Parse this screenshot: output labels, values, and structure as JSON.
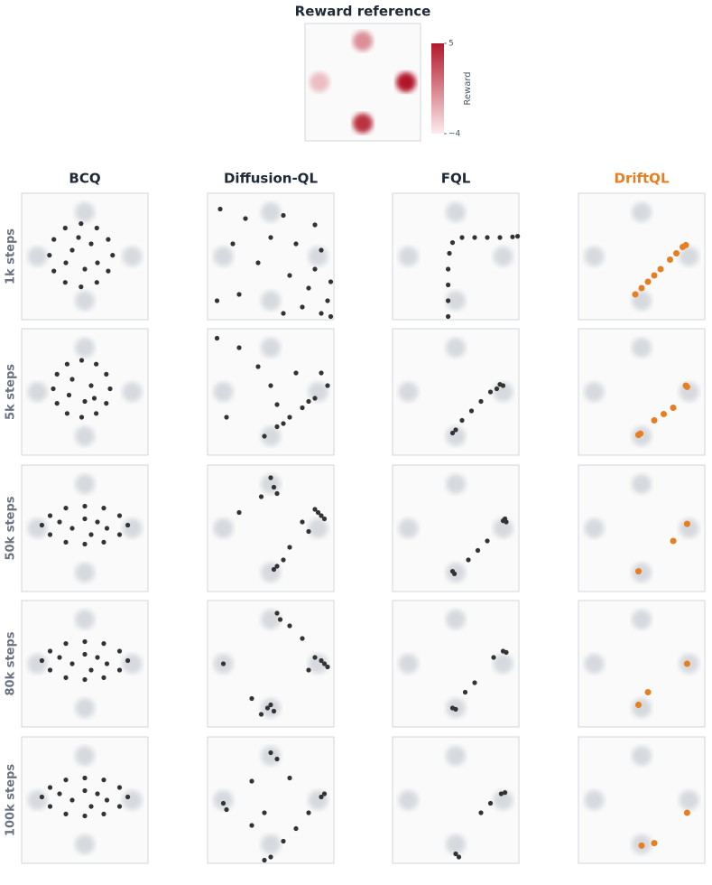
{
  "reference": {
    "title": "Reward reference",
    "colorbar_label": "Reward",
    "clim": [
      -4,
      5
    ],
    "cticks": [
      5,
      {
        "value": -4,
        "label": "−4"
      }
    ],
    "xlim": [
      -1,
      1
    ],
    "ylim": [
      -1,
      1
    ],
    "modes": {
      "x": [
        0,
        -0.75,
        0.75,
        0
      ],
      "y": [
        0.7,
        0,
        0,
        -0.7
      ],
      "reward": [
        0,
        -2,
        5,
        4
      ]
    }
  },
  "chart_data": {
    "type": "scatter",
    "xlim": [
      -1,
      1
    ],
    "ylim": [
      -1,
      1
    ],
    "columns": [
      {
        "name": "BCQ",
        "color": "#333333"
      },
      {
        "name": "Diffusion-QL",
        "color": "#333333"
      },
      {
        "name": "FQL",
        "color": "#333333"
      },
      {
        "name": "DriftQL",
        "color": "#e67e22"
      }
    ],
    "rows": [
      "1k steps",
      "5k steps",
      "50k steps",
      "80k steps",
      "100k steps"
    ],
    "panels": [
      [
        {
          "x": [
            0.44,
            0.37,
            0.19,
            -0.06,
            -0.31,
            -0.49,
            -0.56,
            -0.49,
            -0.31,
            -0.06,
            0.19,
            0.37,
            0.1,
            -0.2,
            0.0,
            -0.3,
            0.2,
            -0.1
          ],
          "y": [
            0.02,
            0.27,
            0.45,
            0.52,
            0.45,
            0.27,
            0.02,
            -0.23,
            -0.41,
            -0.48,
            -0.41,
            -0.23,
            0.2,
            0.1,
            -0.2,
            -0.1,
            -0.1,
            0.3
          ]
        },
        {
          "x": [
            -0.8,
            -0.4,
            0.2,
            0.7,
            -0.6,
            0,
            0.4,
            0.8,
            -0.2,
            0.3,
            0.6,
            0.9,
            0.5,
            0.8,
            0.95,
            0.2,
            -0.5,
            0.7,
            0.95,
            -0.85
          ],
          "y": [
            0.75,
            0.6,
            0.65,
            0.5,
            0.2,
            0.3,
            0.2,
            0.1,
            -0.1,
            -0.3,
            -0.5,
            -0.7,
            -0.8,
            -0.9,
            -0.95,
            -0.9,
            -0.6,
            -0.2,
            -0.4,
            -0.7
          ]
        },
        {
          "x": [
            -0.12,
            -0.12,
            -0.12,
            -0.12,
            -0.1,
            -0.05,
            0.1,
            0.3,
            0.5,
            0.7,
            0.9,
            0.98
          ],
          "y": [
            -0.95,
            -0.7,
            -0.45,
            -0.2,
            0.05,
            0.22,
            0.3,
            0.3,
            0.3,
            0.3,
            0.31,
            0.32
          ]
        },
        {
          "x": [
            -0.1,
            0,
            0.1,
            0.2,
            0.3,
            0.45,
            0.55,
            0.65,
            0.7
          ],
          "y": [
            -0.6,
            -0.5,
            -0.4,
            -0.3,
            -0.2,
            -0.05,
            0.05,
            0.15,
            0.18
          ]
        }
      ],
      [
        {
          "x": [
            0.4,
            0.34,
            0.18,
            -0.05,
            -0.28,
            -0.44,
            -0.5,
            -0.44,
            -0.28,
            -0.05,
            0.18,
            0.34,
            0.1,
            -0.2,
            0,
            -0.25,
            0.15
          ],
          "y": [
            0.05,
            0.28,
            0.44,
            0.5,
            0.44,
            0.28,
            0.05,
            -0.18,
            -0.34,
            -0.4,
            -0.34,
            -0.18,
            0.1,
            0.2,
            -0.15,
            -0.05,
            -0.1
          ]
        },
        {
          "x": [
            -0.1,
            0.1,
            0.3,
            0.5,
            0.7,
            0.9,
            0.2,
            0.6,
            -0.5,
            -0.2,
            0.4,
            -0.7,
            0,
            -0.85,
            0.1,
            0.8
          ],
          "y": [
            -0.7,
            -0.55,
            -0.4,
            -0.25,
            -0.1,
            0.1,
            -0.5,
            -0.15,
            0.7,
            0.4,
            0.3,
            -0.4,
            0.1,
            0.85,
            -0.2,
            0.3
          ]
        },
        {
          "x": [
            -0.05,
            0,
            0.1,
            0.25,
            0.4,
            0.55,
            0.7,
            0.75,
            0.65
          ],
          "y": [
            -0.65,
            -0.6,
            -0.45,
            -0.3,
            -0.15,
            0,
            0.12,
            0.1,
            0.05
          ]
        },
        {
          "x": [
            0.7,
            0.72,
            0.5,
            0.35,
            0.2,
            -0.05,
            -0.02
          ],
          "y": [
            0.1,
            0.08,
            -0.25,
            -0.35,
            -0.45,
            -0.68,
            -0.66
          ]
        }
      ],
      [
        {
          "x": [
            0.68,
            0.55,
            0.3,
            0,
            -0.3,
            -0.55,
            -0.68,
            -0.55,
            -0.3,
            0,
            0.3,
            0.55,
            0.2,
            -0.2,
            0,
            -0.4,
            0.35,
            0.1
          ],
          "y": [
            0.05,
            0.2,
            0.32,
            0.35,
            0.32,
            0.2,
            0.05,
            -0.1,
            -0.22,
            -0.25,
            -0.22,
            -0.1,
            0.1,
            0,
            0.15,
            0.1,
            0,
            -0.1
          ]
        },
        {
          "x": [
            0,
            0.05,
            0.1,
            0.8,
            0.75,
            0.85,
            0.7,
            0.1,
            0.05,
            0.2,
            -0.5,
            0.5,
            0.3,
            -0.15,
            0.6
          ],
          "y": [
            0.8,
            0.65,
            0.55,
            0.2,
            0.25,
            0.15,
            0.3,
            -0.6,
            -0.65,
            -0.5,
            0.25,
            0.1,
            -0.3,
            0.5,
            -0.05
          ]
        },
        {
          "x": [
            0.75,
            0.8,
            0.78,
            0.5,
            0.35,
            0.2,
            -0.05,
            -0.02
          ],
          "y": [
            0.12,
            0.1,
            0.15,
            -0.2,
            -0.35,
            -0.5,
            -0.68,
            -0.72
          ]
        },
        {
          "x": [
            0.72,
            0.5,
            -0.05
          ],
          "y": [
            0.07,
            -0.2,
            -0.68
          ]
        }
      ],
      [
        {
          "x": [
            0.68,
            0.55,
            0.3,
            0,
            -0.3,
            -0.55,
            -0.68,
            -0.55,
            -0.3,
            0,
            0.3,
            0.55,
            0.2,
            -0.2,
            0,
            -0.4,
            0.35,
            0.1
          ],
          "y": [
            0.05,
            0.2,
            0.32,
            0.35,
            0.32,
            0.2,
            0.05,
            -0.1,
            -0.22,
            -0.25,
            -0.22,
            -0.1,
            0.1,
            0,
            0.15,
            0.1,
            0,
            -0.1
          ]
        },
        {
          "x": [
            0.1,
            0.15,
            0.85,
            0.9,
            0.8,
            0.7,
            -0.05,
            0,
            0.05,
            -0.15,
            -0.75,
            0.5,
            0.3,
            -0.3,
            0.6
          ],
          "y": [
            0.8,
            0.7,
            0,
            -0.05,
            0.05,
            0.1,
            -0.7,
            -0.65,
            -0.75,
            -0.8,
            0,
            0.4,
            0.6,
            -0.55,
            -0.1
          ]
        },
        {
          "x": [
            0.75,
            0.8,
            0.6,
            0.3,
            0.15,
            -0.05,
            0
          ],
          "y": [
            0.2,
            0.18,
            0.1,
            -0.3,
            -0.45,
            -0.7,
            -0.72
          ]
        },
        {
          "x": [
            0.72,
            0.1,
            -0.05
          ],
          "y": [
            0,
            -0.45,
            -0.65
          ]
        }
      ],
      [
        {
          "x": [
            0.68,
            0.55,
            0.3,
            0,
            -0.3,
            -0.55,
            -0.68,
            -0.55,
            -0.3,
            0,
            0.3,
            0.55,
            0.2,
            -0.2,
            0,
            -0.4,
            0.35,
            0.1
          ],
          "y": [
            0.05,
            0.2,
            0.32,
            0.35,
            0.32,
            0.2,
            0.05,
            -0.1,
            -0.22,
            -0.25,
            -0.22,
            -0.1,
            0.1,
            0,
            0.15,
            0.1,
            0,
            -0.1
          ]
        },
        {
          "x": [
            0,
            0.2,
            0.4,
            0.6,
            0.8,
            0.85,
            -0.1,
            0,
            0.1,
            -0.3,
            -0.75,
            -0.7,
            0.3,
            -0.3,
            -0.1
          ],
          "y": [
            -0.9,
            -0.65,
            -0.45,
            -0.2,
            0.05,
            0.1,
            -0.95,
            0.75,
            0.65,
            0.3,
            -0.05,
            -0.15,
            0.35,
            -0.4,
            -0.2
          ]
        },
        {
          "x": [
            0.78,
            0.72,
            0.55,
            0.4,
            0,
            0.05
          ],
          "y": [
            0.12,
            0.1,
            -0.05,
            -0.2,
            -0.85,
            -0.9
          ]
        },
        {
          "x": [
            0.72,
            0.2,
            0
          ],
          "y": [
            -0.2,
            -0.68,
            -0.72
          ]
        }
      ]
    ]
  }
}
